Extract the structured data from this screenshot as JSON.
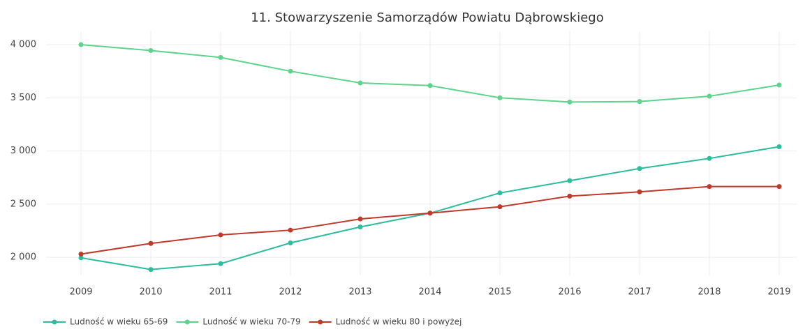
{
  "chart_data": {
    "type": "line",
    "title": "11. Stowarzyszenie Samorządów Powiatu Dąbrowskiego",
    "x": [
      2009,
      2010,
      2011,
      2012,
      2013,
      2014,
      2015,
      2016,
      2017,
      2018,
      2019
    ],
    "series": [
      {
        "name": "Ludność w wieku 65-69",
        "color": "#2bbd9c",
        "values": [
          1995,
          1885,
          1940,
          2135,
          2285,
          2415,
          2605,
          2720,
          2835,
          2930,
          3040
        ]
      },
      {
        "name": "Ludność w wieku 70-79",
        "color": "#5dd38c",
        "values": [
          4000,
          3945,
          3880,
          3750,
          3640,
          3615,
          3500,
          3460,
          3465,
          3515,
          3620
        ]
      },
      {
        "name": "Ludność w wieku 80 i powyżej",
        "color": "#c0392b",
        "values": [
          2030,
          2130,
          2210,
          2255,
          2360,
          2415,
          2475,
          2575,
          2615,
          2665,
          2665
        ]
      }
    ],
    "xlim": [
      2008.5,
      2019.25
    ],
    "xticks": [
      2009,
      2010,
      2011,
      2012,
      2013,
      2014,
      2015,
      2016,
      2017,
      2018,
      2019
    ],
    "ylim": [
      1830,
      4125
    ],
    "yticks": [
      {
        "value": 2000,
        "label": "2 000"
      },
      {
        "value": 2500,
        "label": "2 500"
      },
      {
        "value": 3000,
        "label": "3 000"
      },
      {
        "value": 3500,
        "label": "3 500"
      },
      {
        "value": 4000,
        "label": "4 000"
      }
    ],
    "grid": true,
    "legend": "bottom-left"
  }
}
